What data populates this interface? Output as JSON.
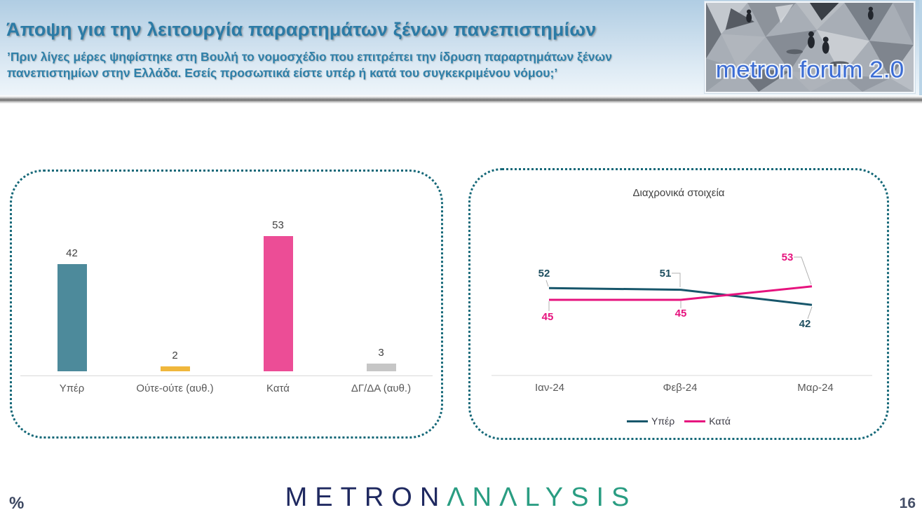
{
  "header": {
    "title": "Άποψη για την λειτουργία παραρτημάτων ξένων πανεπιστημίων",
    "subtitle": "’Πριν λίγες μέρες ψηφίστηκε στη Βουλή το νομοσχέδιο που επιτρέπει την ίδρυση παραρτημάτων ξένων\nπανεπιστημίων στην Ελλάδα. Εσείς προσωπικά είστε υπέρ ή κατά του συγκεκριμένου νόμου;’",
    "logo_text": "metron forum 2.0",
    "logo_text_color": "#3b6cd4"
  },
  "chart_data": [
    {
      "type": "bar",
      "title": "",
      "categories": [
        "Υπέρ",
        "Ούτε-ούτε (αυθ.)",
        "Κατά",
        "ΔΓ/ΔΑ (αυθ.)"
      ],
      "values": [
        42,
        2,
        53,
        3
      ],
      "colors": [
        "#4d8a9b",
        "#f0b73c",
        "#ec4d96",
        "#c6c6c6"
      ],
      "unit": "%",
      "ylim": [
        0,
        60
      ],
      "grid": false,
      "value_labels": true
    },
    {
      "type": "line",
      "title": "Διαχρονικά στοιχεία",
      "x": [
        "Ιαν-24",
        "Φεβ-24",
        "Μαρ-24"
      ],
      "series": [
        {
          "name": "Υπέρ",
          "values": [
            52,
            51,
            42
          ],
          "color": "#17566b",
          "label_color": "#1d4e5f"
        },
        {
          "name": "Κατά",
          "values": [
            45,
            45,
            53
          ],
          "color": "#e6137e",
          "label_color": "#e6137e"
        }
      ],
      "unit": "%",
      "grid": false,
      "legend_position": "bottom",
      "value_labels": true
    }
  ],
  "footer": {
    "percent_label": "%",
    "brand_metron": "METRON",
    "brand_analysis": "ΛNΛLYSIS",
    "page_number": "16"
  }
}
